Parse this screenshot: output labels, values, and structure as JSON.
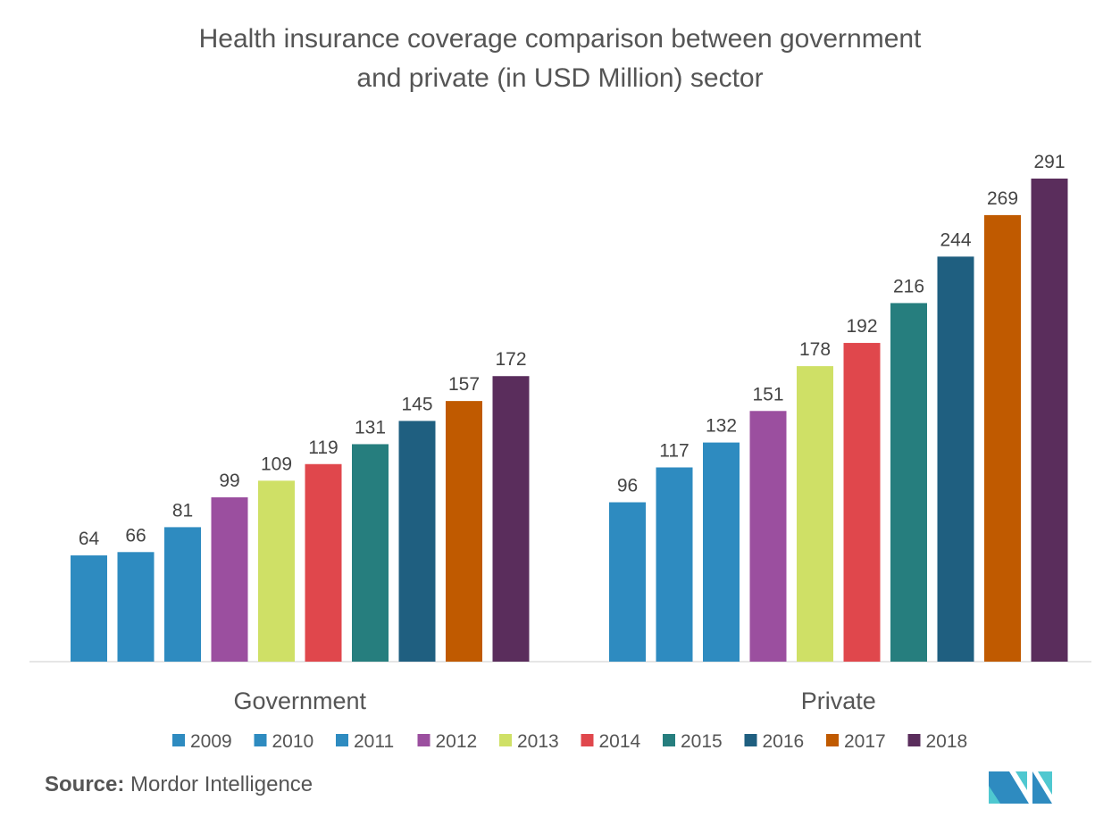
{
  "chart_data": {
    "type": "bar",
    "title_line1": "Health insurance coverage comparison between government",
    "title_line2": "and private (in USD Million) sector",
    "categories": [
      "Government",
      "Private"
    ],
    "series": [
      {
        "name": "2009",
        "color": "#2e8bc0",
        "values": [
          64,
          96
        ]
      },
      {
        "name": "2010",
        "color": "#2e8bc0",
        "values": [
          66,
          117
        ]
      },
      {
        "name": "2011",
        "color": "#2e8bc0",
        "values": [
          81,
          132
        ]
      },
      {
        "name": "2012",
        "color": "#9b4f9f",
        "values": [
          99,
          151
        ]
      },
      {
        "name": "2013",
        "color": "#cfe066",
        "values": [
          109,
          178
        ]
      },
      {
        "name": "2014",
        "color": "#e0474c",
        "values": [
          119,
          192
        ]
      },
      {
        "name": "2015",
        "color": "#267e7e",
        "values": [
          131,
          216
        ]
      },
      {
        "name": "2016",
        "color": "#1f5f80",
        "values": [
          145,
          244
        ]
      },
      {
        "name": "2017",
        "color": "#c05a00",
        "values": [
          157,
          269
        ]
      },
      {
        "name": "2018",
        "color": "#5a2d5c",
        "values": [
          172,
          291
        ]
      }
    ],
    "ylim": [
      0,
      300
    ],
    "legend": "bottom",
    "grid": false
  },
  "source_label": "Source:",
  "source_value": "Mordor Intelligence",
  "logo_text": "Mordor Intelligence"
}
